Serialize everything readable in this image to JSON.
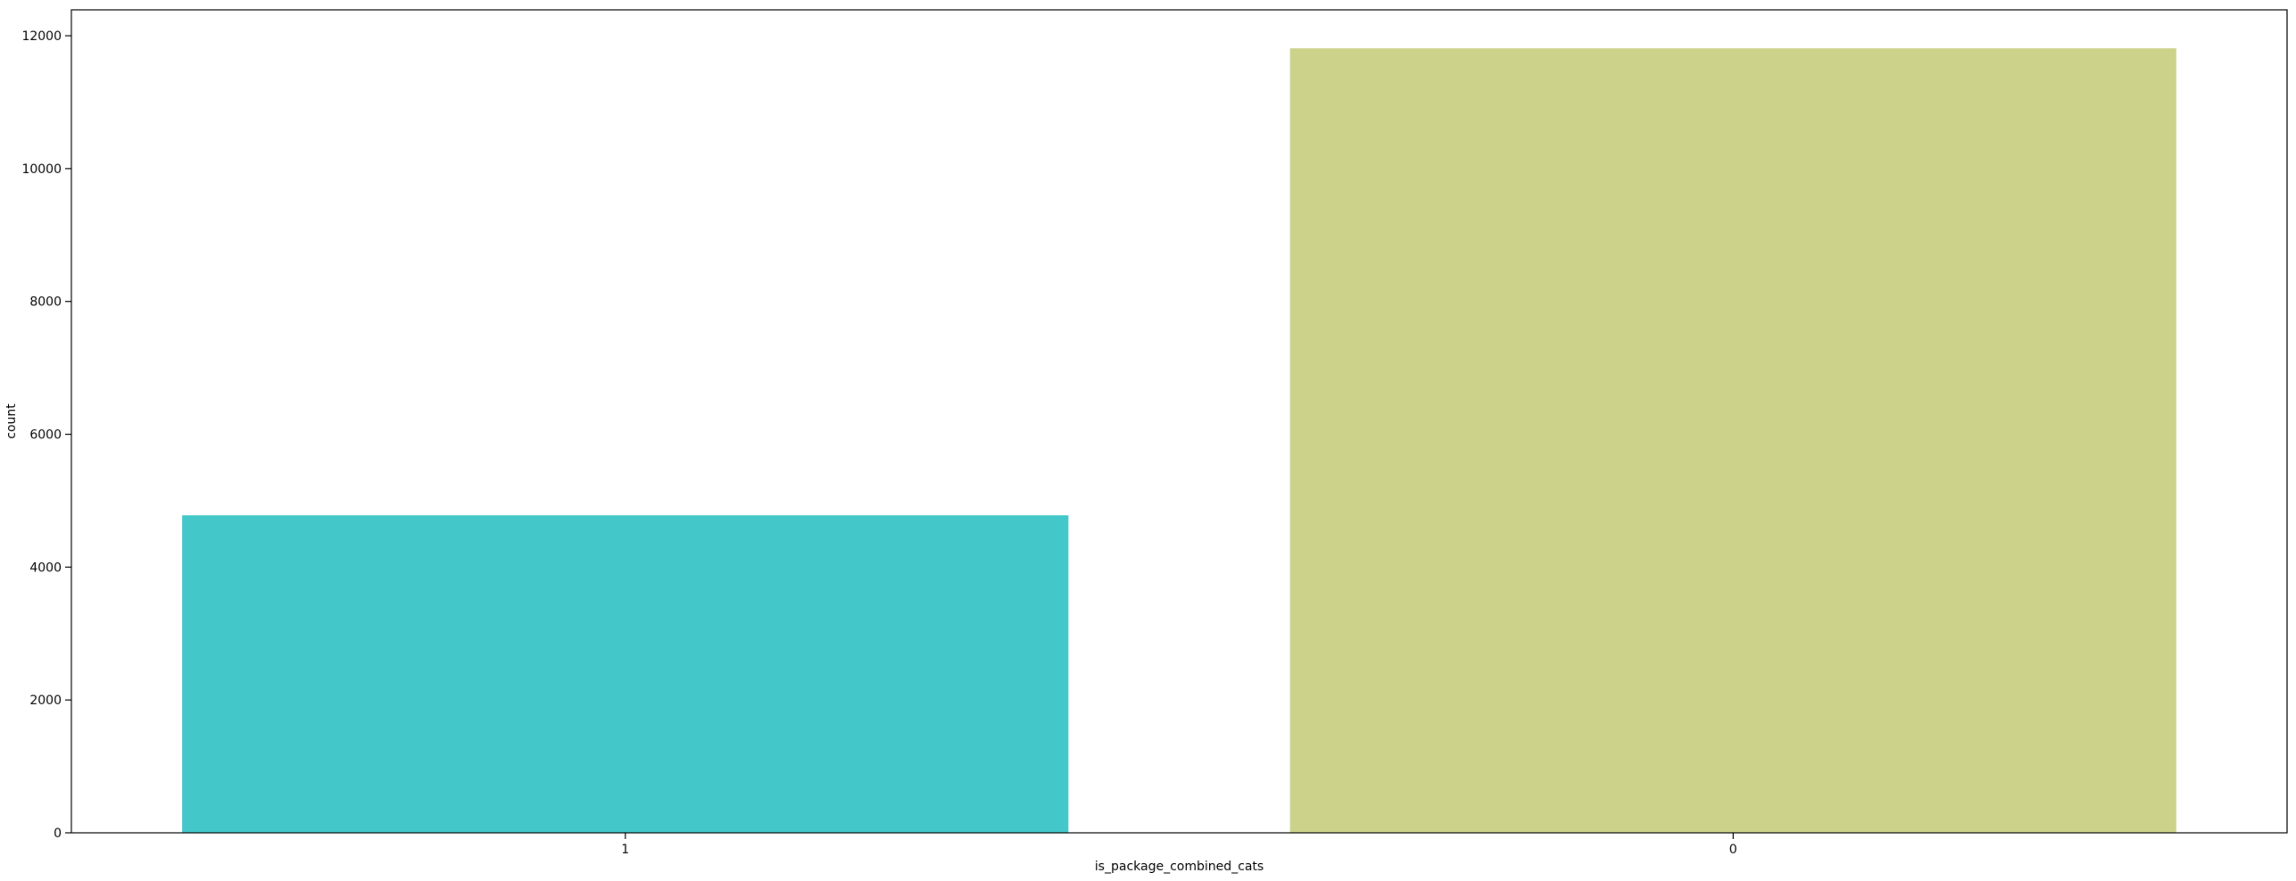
{
  "chart_data": {
    "type": "bar",
    "title": "",
    "xlabel": "is_package_combined_cats",
    "ylabel": "count",
    "categories": [
      "1",
      "0"
    ],
    "values": [
      4780,
      11810
    ],
    "ylim": [
      0,
      12390
    ],
    "yticks": [
      0,
      2000,
      4000,
      6000,
      8000,
      10000,
      12000
    ],
    "ytick_labels": [
      "0",
      "2000",
      "4000",
      "6000",
      "8000",
      "10000",
      "12000"
    ],
    "colors": [
      "#43c7c9",
      "#ccd28a"
    ],
    "grid": false,
    "legend": "none"
  }
}
